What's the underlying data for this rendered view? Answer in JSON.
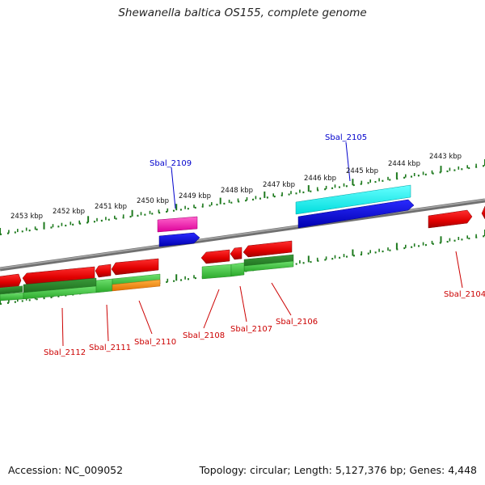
{
  "title": "Shewanella baltica OS155, complete genome",
  "footer": {
    "accession": "Accession: NC_009052",
    "summary": "Topology: circular; Length: 5,127,376 bp; Genes: 4,448"
  },
  "colors": {
    "backbone": "#808080",
    "ticks": "#1e7a1e",
    "label_red": "#cc0000",
    "label_blue": "#0000cc",
    "tick_label": "#111111"
  },
  "scale_labels": [
    "2453 kbp",
    "2452 kbp",
    "2451 kbp",
    "2450 kbp",
    "2449 kbp",
    "2448 kbp",
    "2447 kbp",
    "2446 kbp",
    "2445 kbp",
    "2444 kbp",
    "2443 kbp"
  ],
  "gene_labels": [
    {
      "text": "Sbal_2105",
      "color": "blue"
    },
    {
      "text": "Sbal_2109",
      "color": "blue"
    },
    {
      "text": "Sbal_2104",
      "color": "red"
    },
    {
      "text": "Sbal_2106",
      "color": "red"
    },
    {
      "text": "Sbal_2107",
      "color": "red"
    },
    {
      "text": "Sbal_2108",
      "color": "red"
    },
    {
      "text": "Sbal_2110",
      "color": "red"
    },
    {
      "text": "Sbal_2111",
      "color": "red"
    },
    {
      "text": "Sbal_2112",
      "color": "red"
    }
  ]
}
